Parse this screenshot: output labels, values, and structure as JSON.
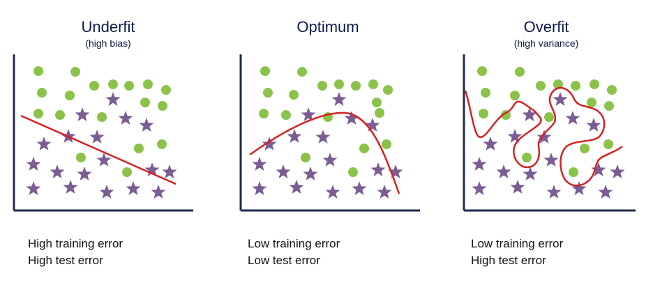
{
  "panels": [
    {
      "title": "Underfit",
      "subtitle": "(high bias)",
      "caption": [
        "High training error",
        "High test error"
      ]
    },
    {
      "title": "Optimum",
      "subtitle": "",
      "caption": [
        "Low training error",
        "Low test error"
      ]
    },
    {
      "title": "Overfit",
      "subtitle": "(high variance)",
      "caption": [
        "Low training error",
        "High test error"
      ]
    }
  ],
  "legend_colors": {
    "circle": "#8bc34a",
    "star": "#7b5c94",
    "fit_line": "#d62020",
    "axes": "#1f2a4a"
  }
}
